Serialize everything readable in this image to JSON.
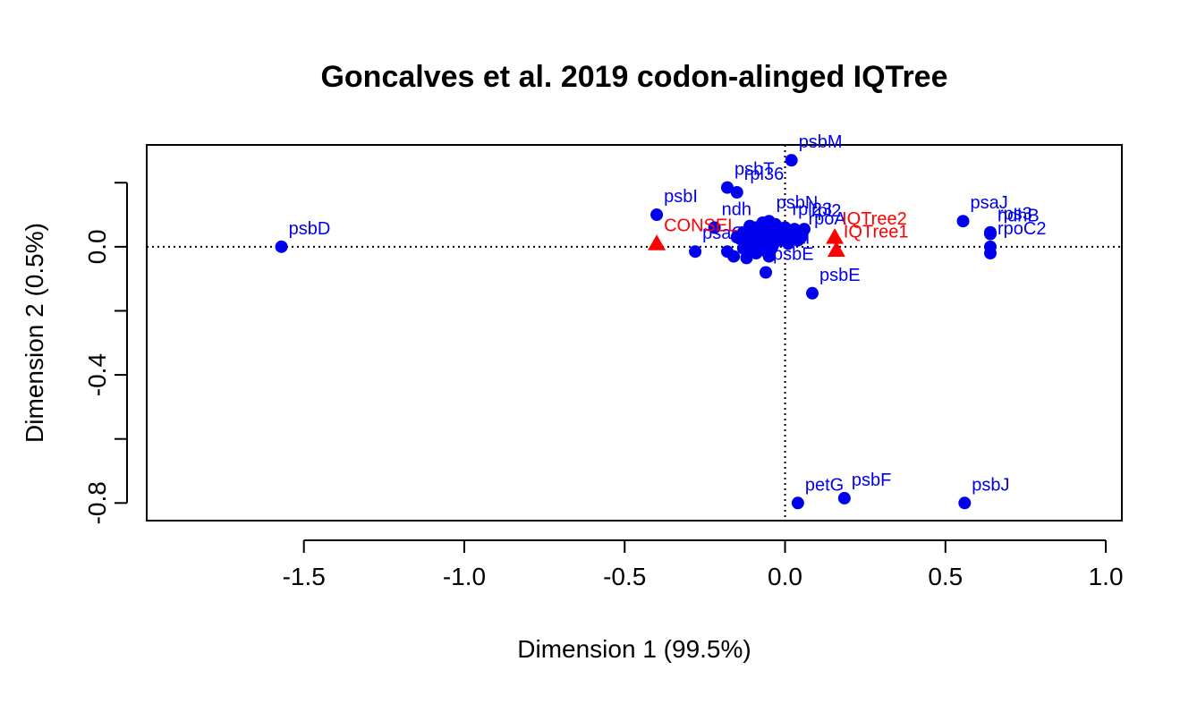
{
  "chart_data": {
    "type": "scatter",
    "title": "Goncalves et al. 2019 codon-alinged IQTree",
    "xlabel": "Dimension 1 (99.5%)",
    "ylabel": "Dimension 2 (0.5%)",
    "xlim": [
      -1.99,
      1.05
    ],
    "ylim": [
      -0.855,
      0.318
    ],
    "xticks": [
      -1.5,
      -1.0,
      -0.5,
      0.0,
      0.5,
      1.0
    ],
    "xtick_labels": [
      "-1.5",
      "-1.0",
      "-0.5",
      "0.0",
      "0.5",
      "1.0"
    ],
    "yticks": [
      -0.8,
      -0.4,
      0.0
    ],
    "ytick_labels": [
      "-0.8",
      "-0.4",
      "0.0"
    ],
    "reference_lines": {
      "x": 0,
      "y": 0,
      "style": "dotted"
    },
    "colors": {
      "genes": "#0000ee",
      "trees": "#ff0000",
      "axes": "#000000"
    },
    "series": [
      {
        "marker": "circle",
        "color": "#0000ee",
        "points": [
          {
            "x": -1.57,
            "y": 0.0,
            "label": "psbD"
          },
          {
            "x": -0.4,
            "y": 0.1,
            "label": "psbI"
          },
          {
            "x": -0.18,
            "y": 0.185,
            "label": "psbT"
          },
          {
            "x": -0.15,
            "y": 0.17,
            "label": "rpl36"
          },
          {
            "x": 0.02,
            "y": 0.27,
            "label": "psbM"
          },
          {
            "x": -0.05,
            "y": 0.08,
            "label": "psbN"
          },
          {
            "x": -0.22,
            "y": 0.06,
            "label": "ndh"
          },
          {
            "x": -0.28,
            "y": -0.015,
            "label": "psaC"
          },
          {
            "x": -0.05,
            "y": -0.03,
            "label": "psaI"
          },
          {
            "x": -0.06,
            "y": -0.08,
            "label": "psbE"
          },
          {
            "x": 0.085,
            "y": -0.145,
            "label": "psbE"
          },
          {
            "x": 0.04,
            "y": -0.8,
            "label": "petG"
          },
          {
            "x": 0.185,
            "y": -0.785,
            "label": "psbF"
          },
          {
            "x": 0.56,
            "y": -0.8,
            "label": "psbJ"
          },
          {
            "x": 0.555,
            "y": 0.08,
            "label": "psaJ"
          },
          {
            "x": 0.64,
            "y": 0.045,
            "label": "rps3"
          },
          {
            "x": 0.64,
            "y": 0.04,
            "label": "ndhB"
          },
          {
            "x": 0.64,
            "y": 0.0,
            "label": "rpoC2"
          },
          {
            "x": 0.64,
            "y": -0.02,
            "label": ""
          },
          {
            "x": 0.0,
            "y": 0.06,
            "label": "rpl23"
          },
          {
            "x": 0.06,
            "y": 0.055,
            "label": "rpl2"
          },
          {
            "x": 0.05,
            "y": 0.03,
            "label": "rpoA"
          },
          {
            "x": 0.04,
            "y": 0.02,
            "label": ""
          },
          {
            "x": -0.02,
            "y": 0.05,
            "label": ""
          },
          {
            "x": -0.04,
            "y": 0.04,
            "label": ""
          },
          {
            "x": -0.06,
            "y": 0.03,
            "label": ""
          },
          {
            "x": -0.08,
            "y": 0.05,
            "label": ""
          },
          {
            "x": -0.09,
            "y": 0.06,
            "label": ""
          },
          {
            "x": -0.1,
            "y": 0.035,
            "label": ""
          },
          {
            "x": -0.12,
            "y": 0.02,
            "label": ""
          },
          {
            "x": -0.13,
            "y": 0.045,
            "label": ""
          },
          {
            "x": -0.14,
            "y": 0.025,
            "label": ""
          },
          {
            "x": -0.15,
            "y": 0.03,
            "label": ""
          },
          {
            "x": -0.11,
            "y": 0.065,
            "label": ""
          },
          {
            "x": -0.07,
            "y": 0.075,
            "label": ""
          },
          {
            "x": -0.03,
            "y": 0.07,
            "label": ""
          },
          {
            "x": 0.01,
            "y": 0.045,
            "label": ""
          },
          {
            "x": 0.02,
            "y": 0.03,
            "label": ""
          },
          {
            "x": -0.01,
            "y": 0.02,
            "label": ""
          },
          {
            "x": -0.03,
            "y": 0.015,
            "label": ""
          },
          {
            "x": -0.05,
            "y": 0.01,
            "label": ""
          },
          {
            "x": -0.08,
            "y": 0.015,
            "label": ""
          },
          {
            "x": -0.11,
            "y": 0.0,
            "label": ""
          },
          {
            "x": -0.13,
            "y": -0.005,
            "label": ""
          },
          {
            "x": -0.18,
            "y": -0.015,
            "label": ""
          },
          {
            "x": -0.16,
            "y": -0.03,
            "label": ""
          },
          {
            "x": -0.12,
            "y": -0.035,
            "label": ""
          },
          {
            "x": -0.09,
            "y": -0.02,
            "label": ""
          },
          {
            "x": -0.07,
            "y": -0.01,
            "label": ""
          },
          {
            "x": -0.04,
            "y": 0.0,
            "label": ""
          },
          {
            "x": 0.01,
            "y": 0.01,
            "label": ""
          },
          {
            "x": 0.03,
            "y": 0.055,
            "label": ""
          },
          {
            "x": -0.06,
            "y": 0.055,
            "label": ""
          },
          {
            "x": -0.1,
            "y": 0.01,
            "label": ""
          },
          {
            "x": -0.02,
            "y": 0.035,
            "label": ""
          }
        ]
      },
      {
        "marker": "triangle",
        "color": "#ff0000",
        "points": [
          {
            "x": -0.4,
            "y": 0.01,
            "label": "CONSEL"
          },
          {
            "x": 0.155,
            "y": 0.03,
            "label": "IQTree2"
          },
          {
            "x": 0.16,
            "y": -0.01,
            "label": "IQTree1"
          }
        ]
      }
    ]
  }
}
